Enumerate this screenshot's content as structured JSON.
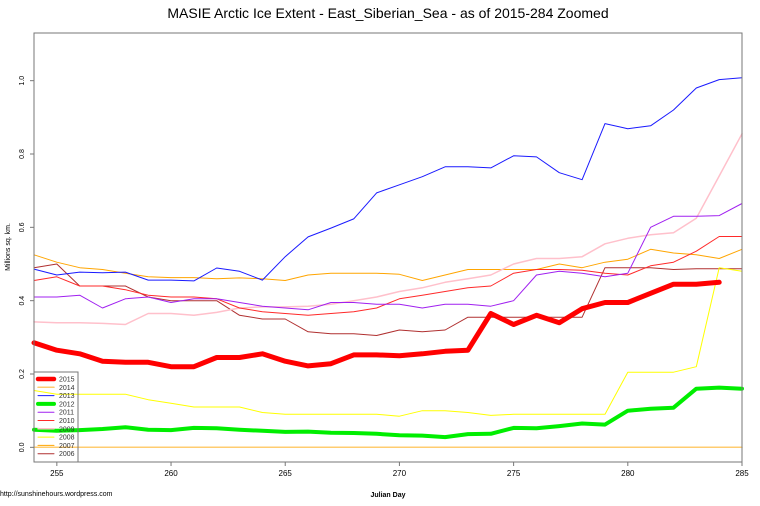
{
  "chart_data": {
    "type": "line",
    "title": "MASIE Arctic Ice Extent - East_Siberian_Sea - as of 2015-284 Zoomed",
    "xlabel": "Julian Day",
    "ylabel": "Millions sq. km.",
    "xlim": [
      254,
      285
    ],
    "ylim": [
      -0.04,
      1.13
    ],
    "xticks": [
      255,
      260,
      265,
      270,
      275,
      280,
      285
    ],
    "yticks": [
      "0.0",
      "0.2",
      "0.4",
      "0.6",
      "0.8",
      "1.0"
    ],
    "grid": false,
    "legend_position": "bottom-left",
    "x_start": 254,
    "series": [
      {
        "name": "2015",
        "color": "#ff0000",
        "width": 5,
        "values": [
          0.285,
          0.265,
          0.255,
          0.235,
          0.232,
          0.232,
          0.22,
          0.22,
          0.245,
          0.245,
          0.255,
          0.235,
          0.222,
          0.228,
          0.252,
          0.252,
          0.25,
          0.255,
          0.262,
          0.265,
          0.365,
          0.335,
          0.36,
          0.34,
          0.378,
          0.395,
          0.395,
          0.42,
          0.445,
          0.445,
          0.45
        ]
      },
      {
        "name": "2014",
        "color": "#ffcc70",
        "width": 1.5,
        "values": [
          0,
          0,
          0,
          0,
          0,
          0,
          0,
          0,
          0,
          0,
          0,
          0,
          0,
          0,
          0,
          0,
          0,
          0,
          0,
          0,
          0,
          0,
          0,
          0,
          0,
          0,
          0,
          0,
          0,
          0,
          0,
          0
        ]
      },
      {
        "name": "2013",
        "color": "#1a1aff",
        "width": 1,
        "values": [
          0.486,
          0.47,
          0.478,
          0.476,
          0.478,
          0.456,
          0.456,
          0.454,
          0.489,
          0.48,
          0.456,
          0.52,
          0.574,
          0.598,
          0.623,
          0.694,
          0.716,
          0.738,
          0.765,
          0.765,
          0.762,
          0.795,
          0.792,
          0.749,
          0.73,
          0.883,
          0.869,
          0.877,
          0.92,
          0.98,
          1.003,
          1.008
        ]
      },
      {
        "name": "2012",
        "color": "#00ee00",
        "width": 4,
        "values": [
          0.048,
          0.045,
          0.047,
          0.05,
          0.055,
          0.048,
          0.047,
          0.053,
          0.052,
          0.048,
          0.045,
          0.042,
          0.043,
          0.04,
          0.039,
          0.037,
          0.033,
          0.032,
          0.028,
          0.036,
          0.037,
          0.053,
          0.052,
          0.058,
          0.065,
          0.062,
          0.1,
          0.105,
          0.108,
          0.16,
          0.163,
          0.16
        ]
      },
      {
        "name": "2011",
        "color": "#a020f0",
        "width": 1,
        "values": [
          0.41,
          0.41,
          0.415,
          0.38,
          0.405,
          0.41,
          0.395,
          0.405,
          0.405,
          0.395,
          0.385,
          0.38,
          0.375,
          0.395,
          0.395,
          0.39,
          0.39,
          0.38,
          0.39,
          0.39,
          0.385,
          0.4,
          0.47,
          0.48,
          0.475,
          0.465,
          0.475,
          0.6,
          0.63,
          0.63,
          0.632,
          0.665
        ]
      },
      {
        "name": "2010",
        "color": "#ff2a2a",
        "width": 1,
        "values": [
          0.455,
          0.465,
          0.44,
          0.44,
          0.43,
          0.415,
          0.41,
          0.41,
          0.405,
          0.38,
          0.37,
          0.365,
          0.36,
          0.365,
          0.37,
          0.38,
          0.405,
          0.415,
          0.425,
          0.435,
          0.44,
          0.475,
          0.485,
          0.485,
          0.483,
          0.475,
          0.47,
          0.495,
          0.505,
          0.535,
          0.575,
          0.575
        ]
      },
      {
        "name": "2009",
        "color": "#ffc0cb",
        "width": 1.5,
        "values": [
          0.342,
          0.34,
          0.34,
          0.338,
          0.335,
          0.365,
          0.365,
          0.36,
          0.368,
          0.38,
          0.383,
          0.383,
          0.385,
          0.39,
          0.4,
          0.41,
          0.425,
          0.435,
          0.45,
          0.46,
          0.47,
          0.5,
          0.515,
          0.515,
          0.52,
          0.555,
          0.57,
          0.58,
          0.585,
          0.625,
          0.74,
          0.855
        ]
      },
      {
        "name": "2008",
        "color": "#ffff00",
        "width": 1,
        "values": [
          0.155,
          0.145,
          0.145,
          0.145,
          0.145,
          0.13,
          0.12,
          0.11,
          0.11,
          0.11,
          0.095,
          0.09,
          0.09,
          0.09,
          0.09,
          0.09,
          0.085,
          0.1,
          0.1,
          0.095,
          0.087,
          0.09,
          0.09,
          0.09,
          0.09,
          0.09,
          0.205,
          0.205,
          0.205,
          0.22,
          0.49,
          0.48
        ]
      },
      {
        "name": "2007",
        "color": "#ffa500",
        "width": 1,
        "values": [
          0.525,
          0.505,
          0.49,
          0.485,
          0.475,
          0.465,
          0.463,
          0.463,
          0.46,
          0.462,
          0.46,
          0.455,
          0.47,
          0.475,
          0.475,
          0.475,
          0.472,
          0.455,
          0.47,
          0.485,
          0.485,
          0.485,
          0.485,
          0.5,
          0.49,
          0.505,
          0.513,
          0.54,
          0.53,
          0.525,
          0.515,
          0.54
        ]
      },
      {
        "name": "2006",
        "color": "#b03030",
        "width": 1,
        "values": [
          0.49,
          0.5,
          0.44,
          0.44,
          0.44,
          0.41,
          0.4,
          0.4,
          0.4,
          0.36,
          0.35,
          0.35,
          0.315,
          0.31,
          0.31,
          0.305,
          0.32,
          0.315,
          0.32,
          0.355,
          0.355,
          0.355,
          0.355,
          0.355,
          0.355,
          0.49,
          0.49,
          0.49,
          0.485,
          0.487,
          0.487,
          0.487
        ]
      }
    ]
  },
  "footer": {
    "source": "http://sunshinehours.wordpress.com"
  }
}
